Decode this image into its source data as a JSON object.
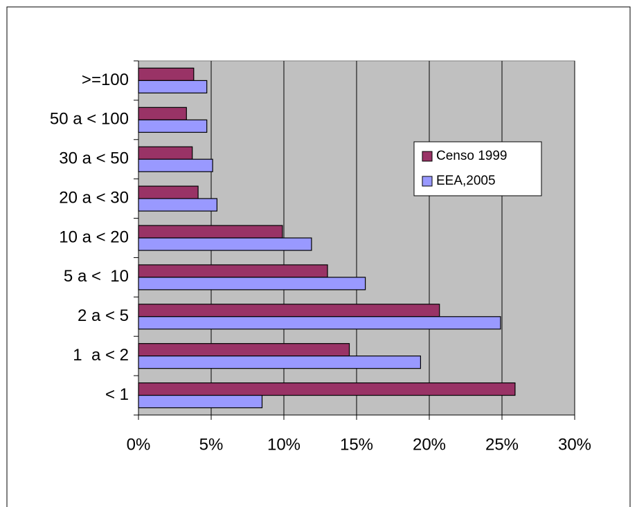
{
  "chart_data": {
    "type": "bar",
    "orientation": "horizontal",
    "categories": [
      ">=100",
      "50 a < 100",
      "30 a < 50",
      "20 a < 30",
      "10 a < 20",
      "5 a <  10",
      "2 a < 5",
      "1  a < 2",
      "< 1"
    ],
    "series": [
      {
        "name": "Censo 1999",
        "color": "#993366",
        "values": [
          3.8,
          3.3,
          3.7,
          4.1,
          9.9,
          13.0,
          20.7,
          14.5,
          25.9
        ]
      },
      {
        "name": "EEA,2005",
        "color": "#9999ff",
        "values": [
          4.7,
          4.7,
          5.1,
          5.4,
          11.9,
          15.6,
          24.9,
          19.4,
          8.5
        ]
      }
    ],
    "xlim": [
      0,
      30
    ],
    "xticks": [
      {
        "value": 0,
        "label": "0%"
      },
      {
        "value": 5,
        "label": "5%"
      },
      {
        "value": 10,
        "label": "10%"
      },
      {
        "value": 15,
        "label": "15%"
      },
      {
        "value": 20,
        "label": "20%"
      },
      {
        "value": 25,
        "label": "25%"
      },
      {
        "value": 30,
        "label": "30%"
      }
    ],
    "grid": true,
    "legend_position": "right"
  }
}
